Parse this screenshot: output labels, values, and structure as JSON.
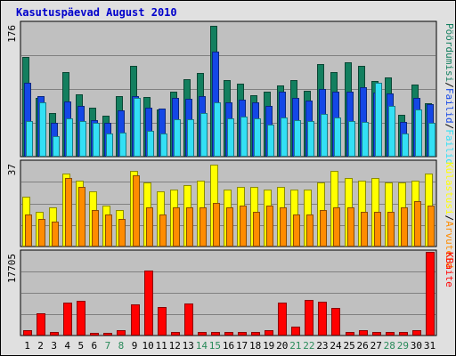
{
  "title": "Kasutuspäevad August 2010",
  "colors": {
    "visits": "#137f5f",
    "pages": "#1447e6",
    "files": "#33e0f5",
    "hits": "#ffff00",
    "sites": "#ff8c00",
    "kbytes": "#ff0000",
    "weekday_label": "#000000",
    "weekend_label": "#2a8a5a",
    "title": "#0000cc"
  },
  "chart_data": [
    {
      "type": "bar",
      "name": "top",
      "ytick_label": "176",
      "ylim": [
        0,
        176
      ],
      "grid": true,
      "categories": [
        "1",
        "2",
        "3",
        "4",
        "5",
        "6",
        "7",
        "8",
        "9",
        "10",
        "11",
        "12",
        "13",
        "14",
        "15",
        "16",
        "17",
        "18",
        "19",
        "20",
        "21",
        "22",
        "23",
        "24",
        "25",
        "26",
        "27",
        "28",
        "29",
        "30",
        "31"
      ],
      "series": [
        {
          "name": "Pöördumisi",
          "values": [
            131,
            78,
            58,
            111,
            82,
            64,
            54,
            80,
            120,
            79,
            62,
            86,
            102,
            110,
            173,
            101,
            96,
            81,
            86,
            94,
            101,
            87,
            122,
            111,
            124,
            120,
            100,
            105,
            55,
            95,
            70
          ]
        },
        {
          "name": "Failid",
          "values": [
            97,
            80,
            45,
            73,
            67,
            48,
            45,
            61,
            80,
            65,
            63,
            77,
            76,
            80,
            139,
            72,
            75,
            71,
            67,
            86,
            78,
            74,
            89,
            86,
            86,
            91,
            85,
            83,
            46,
            78,
            69
          ]
        },
        {
          "name": "Failid",
          "values": [
            47,
            72,
            27,
            51,
            47,
            44,
            31,
            32,
            77,
            34,
            31,
            49,
            49,
            58,
            71,
            50,
            53,
            50,
            42,
            52,
            48,
            47,
            56,
            52,
            47,
            46,
            97,
            67,
            30,
            62,
            45
          ]
        }
      ]
    },
    {
      "type": "bar",
      "name": "middle",
      "ytick_label": "37",
      "ylim": [
        0,
        37
      ],
      "grid": true,
      "categories": [
        "1",
        "2",
        "3",
        "4",
        "5",
        "6",
        "7",
        "8",
        "9",
        "10",
        "11",
        "12",
        "13",
        "14",
        "15",
        "16",
        "17",
        "18",
        "19",
        "20",
        "21",
        "22",
        "23",
        "24",
        "25",
        "26",
        "27",
        "28",
        "29",
        "30",
        "31"
      ],
      "series": [
        {
          "name": "Külastusi",
          "values": [
            22,
            15,
            17,
            32,
            29,
            24,
            18,
            16,
            33,
            28,
            24,
            25,
            27,
            29,
            36,
            25,
            26,
            26,
            25,
            26,
            25,
            25,
            28,
            33,
            30,
            29,
            30,
            28,
            28,
            29,
            32
          ]
        },
        {
          "name": "Arvuteid",
          "values": [
            14,
            12,
            11,
            30,
            26,
            16,
            14,
            12,
            31,
            17,
            14,
            17,
            17,
            17,
            19,
            17,
            18,
            15,
            18,
            17,
            14,
            14,
            16,
            17,
            17,
            15,
            15,
            15,
            17,
            20,
            18
          ]
        }
      ]
    },
    {
      "type": "bar",
      "name": "bottom",
      "ytick_label": "17705",
      "ylim": [
        0,
        17705
      ],
      "grid": true,
      "categories": [
        "1",
        "2",
        "3",
        "4",
        "5",
        "6",
        "7",
        "8",
        "9",
        "10",
        "11",
        "12",
        "13",
        "14",
        "15",
        "16",
        "17",
        "18",
        "19",
        "20",
        "21",
        "22",
        "23",
        "24",
        "25",
        "26",
        "27",
        "28",
        "29",
        "30",
        "31"
      ],
      "series": [
        {
          "name": "KBaite",
          "values": [
            1050,
            4700,
            700,
            7000,
            7400,
            600,
            500,
            1050,
            6600,
            13700,
            6100,
            800,
            6800,
            800,
            800,
            800,
            800,
            800,
            1050,
            6900,
            1800,
            7600,
            7200,
            5800,
            700,
            1200,
            800,
            800,
            800,
            1050,
            17705
          ]
        }
      ]
    }
  ],
  "legend_right": {
    "top": [
      {
        "text": "Pöördumisi",
        "key": "visits"
      },
      {
        "text": "/",
        "key": "sep"
      },
      {
        "text": "Failid",
        "key": "pages"
      },
      {
        "text": "/",
        "key": "sep"
      },
      {
        "text": "Failid",
        "key": "files"
      }
    ],
    "middle": [
      {
        "text": "Külastusi",
        "key": "hits"
      },
      {
        "text": "/",
        "key": "sep"
      },
      {
        "text": "Arvuteid",
        "key": "sites"
      }
    ],
    "bottom": [
      {
        "text": "KBaite",
        "key": "kbytes"
      }
    ]
  },
  "weekend_days": [
    7,
    8,
    14,
    15,
    21,
    22,
    28,
    29
  ]
}
